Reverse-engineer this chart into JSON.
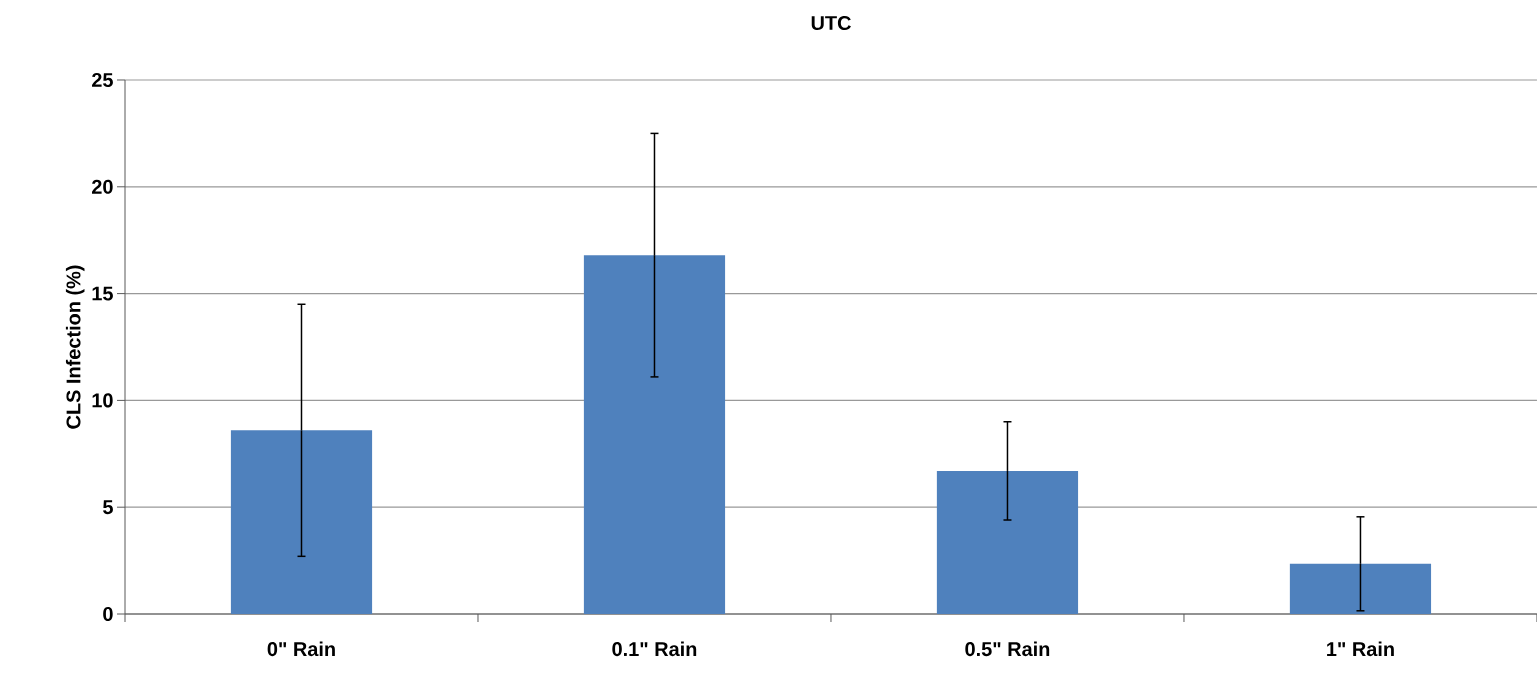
{
  "chart_data": {
    "type": "bar",
    "title": "UTC",
    "ylabel": "CLS Infection (%)",
    "categories": [
      "0\" Rain",
      "0.1\" Rain",
      "0.5\" Rain",
      "1\" Rain"
    ],
    "values": [
      8.6,
      16.8,
      6.7,
      2.35
    ],
    "errors": [
      5.9,
      5.7,
      2.3,
      2.2
    ],
    "color": "#4f81bd",
    "ylim": [
      0,
      25
    ],
    "yticks": [
      0,
      5,
      10,
      15,
      20,
      25
    ],
    "grid": "y"
  }
}
